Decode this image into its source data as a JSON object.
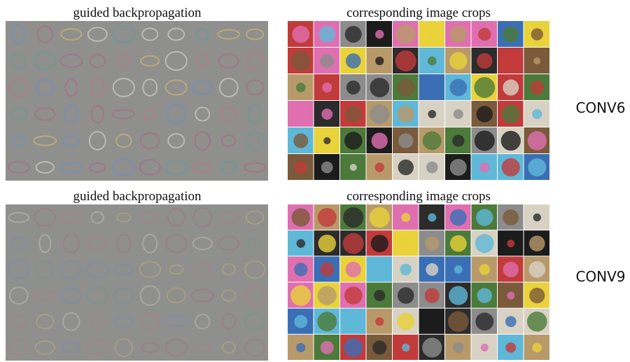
{
  "rows": [
    {
      "left_title": "guided backpropagation",
      "right_title": "corresponding image crops",
      "label": "CONV6"
    },
    {
      "left_title": "guided backpropagation",
      "right_title": "corresponding image crops",
      "label": "CONV9"
    }
  ]
}
